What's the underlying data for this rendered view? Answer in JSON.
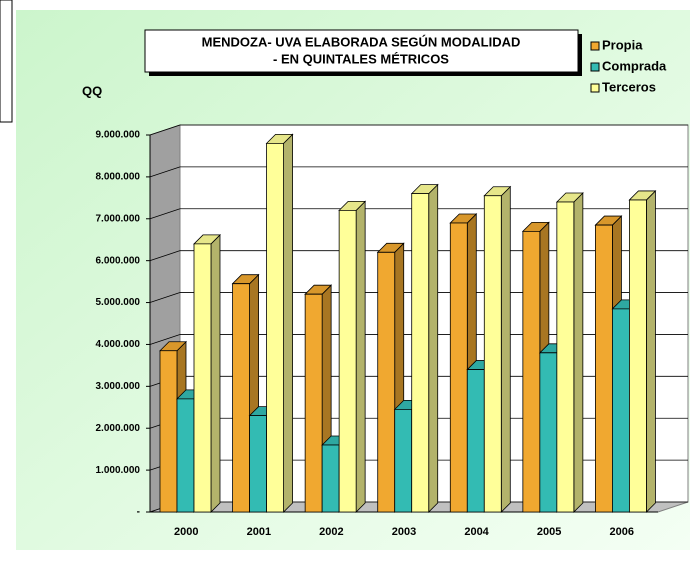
{
  "chart_data": {
    "type": "bar3d",
    "title": [
      "MENDOZA- UVA ELABORADA SEGÚN MODALIDAD",
      "- EN QUINTALES MÉTRICOS"
    ],
    "y_axis_label": "QQ",
    "categories": [
      "2000",
      "2001",
      "2002",
      "2003",
      "2004",
      "2005",
      "2006"
    ],
    "series": [
      {
        "name": "Propia",
        "color": "#f0a830",
        "values": [
          3850000,
          5450000,
          5200000,
          6200000,
          6900000,
          6700000,
          6850000
        ]
      },
      {
        "name": "Comprada",
        "color": "#33bbb3",
        "values": [
          2700000,
          2300000,
          1600000,
          2450000,
          3400000,
          3800000,
          4850000
        ]
      },
      {
        "name": "Terceros",
        "color": "#ffff99",
        "values": [
          6400000,
          8800000,
          7200000,
          7600000,
          7550000,
          7400000,
          7450000
        ]
      }
    ],
    "ylim": [
      0,
      9000000
    ],
    "yticks": [
      {
        "value": 0,
        "label": "-"
      },
      {
        "value": 1000000,
        "label": "1.000.000"
      },
      {
        "value": 2000000,
        "label": "2.000.000"
      },
      {
        "value": 3000000,
        "label": "3.000.000"
      },
      {
        "value": 4000000,
        "label": "4.000.000"
      },
      {
        "value": 5000000,
        "label": "5.000.000"
      },
      {
        "value": 6000000,
        "label": "6.000.000"
      },
      {
        "value": 7000000,
        "label": "7.000.000"
      },
      {
        "value": 8000000,
        "label": "8.000.000"
      },
      {
        "value": 9000000,
        "label": "9.000.000"
      }
    ],
    "grid": true,
    "legend": "top-right"
  }
}
